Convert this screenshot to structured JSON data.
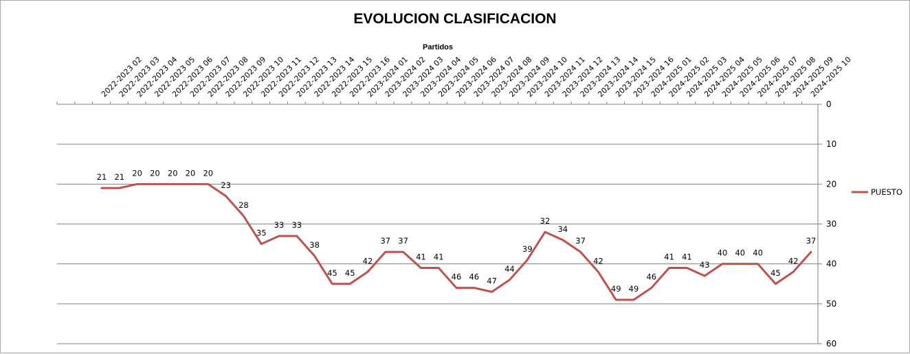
{
  "chart_data": {
    "type": "line",
    "title": "EVOLUCION CLASIFICACION",
    "xlabel": "Partidos",
    "ylabel": "",
    "x_axis_position": "top",
    "y_axis_position": "right",
    "y_inverted": true,
    "ylim": [
      0,
      60
    ],
    "yticks": [
      0,
      10,
      20,
      30,
      40,
      50,
      60
    ],
    "grid": "horizontal",
    "legend_position": "right",
    "line_color": "#c0504d",
    "categories": [
      "2022-2023 02",
      "2022-2023 03",
      "2022-2023 04",
      "2022-2023 05",
      "2022-2023 06",
      "2022-2023 07",
      "2022-2023 08",
      "2022-2023 09",
      "2022-2023 10",
      "2022-2023 11",
      "2022-2023 12",
      "2022-2023 13",
      "2022-2023 14",
      "2022-2023 15",
      "2022-2023 16",
      "2023-2024 01",
      "2023-2024 02",
      "2023-2024 03",
      "2023-2024 04",
      "2023-2024 05",
      "2023-2024 06",
      "2023-2024 07",
      "2023-2024 08",
      "2023-2024 09",
      "2023-2024 10",
      "2023-2024 11",
      "2023-2024 12",
      "2023-2024 13",
      "2023-2024 14",
      "2023-2024 15",
      "2023-2024 16",
      "2024-2025 01",
      "2024-2025 02",
      "2024-2025 03",
      "2024-2025 04",
      "2024-2025 05",
      "2024-2025 06",
      "2024-2025 07",
      "2024-2025 08",
      "2024-2025 09",
      "2024-2025 10"
    ],
    "series": [
      {
        "name": "PUESTO",
        "values": [
          21,
          21,
          20,
          20,
          20,
          20,
          20,
          23,
          28,
          35,
          33,
          33,
          38,
          45,
          45,
          42,
          37,
          37,
          41,
          41,
          46,
          46,
          47,
          44,
          39,
          32,
          34,
          37,
          42,
          49,
          49,
          46,
          41,
          41,
          43,
          40,
          40,
          40,
          45,
          42,
          37
        ]
      }
    ]
  }
}
